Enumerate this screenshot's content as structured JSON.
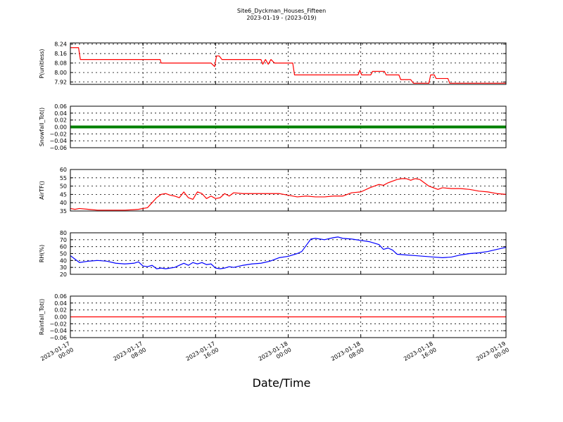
{
  "title_line1": "Site6_Dyckman_Houses_Fifteen",
  "title_line2": "2023-01-19 - (2023-019)",
  "xlabel": "Date/Time",
  "x_ticks": [
    [
      "2023-01-17",
      "00:00"
    ],
    [
      "2023-01-17",
      "08:00"
    ],
    [
      "2023-01-17",
      "16:00"
    ],
    [
      "2023-01-18",
      "00:00"
    ],
    [
      "2023-01-18",
      "08:00"
    ],
    [
      "2023-01-18",
      "16:00"
    ],
    [
      "2023-01-19",
      "00:00"
    ]
  ],
  "colors": {
    "red": "#ff0000",
    "green": "#008000",
    "blue": "#0000ff",
    "axis": "#000000"
  },
  "chart_data": [
    {
      "type": "line",
      "ylabel": "P(unitless)",
      "ylim": [
        7.9,
        8.25
      ],
      "yticks": [
        7.92,
        8.0,
        8.08,
        8.16,
        8.24
      ],
      "ytick_labels": [
        "7.92",
        "8.00",
        "8.08",
        "8.16",
        "8.24"
      ],
      "x_range_hours": [
        0,
        48
      ],
      "series": [
        {
          "color": "#ff0000",
          "x": [
            0,
            0.9,
            1.1,
            4,
            7,
            9.9,
            10,
            12,
            14,
            15.5,
            15.9,
            16.1,
            16.4,
            16.7,
            17,
            18,
            19,
            20,
            21,
            21.2,
            21.5,
            21.8,
            22.1,
            22.5,
            23,
            24,
            24.5,
            24.7,
            25,
            28,
            30,
            31.7,
            31.9,
            32.1,
            32.4,
            33.1,
            33.3,
            34.6,
            34.8,
            36.2,
            36.4,
            37.5,
            37.8,
            39.5,
            39.7,
            40.1,
            40.3,
            41.6,
            41.8,
            48
          ],
          "y": [
            8.21,
            8.21,
            8.11,
            8.11,
            8.11,
            8.11,
            8.08,
            8.08,
            8.08,
            8.08,
            8.05,
            8.14,
            8.14,
            8.11,
            8.11,
            8.11,
            8.11,
            8.11,
            8.11,
            8.07,
            8.11,
            8.07,
            8.11,
            8.08,
            8.08,
            8.08,
            8.08,
            7.98,
            7.98,
            7.98,
            7.98,
            7.98,
            8.02,
            7.98,
            7.98,
            7.98,
            8.01,
            8.01,
            7.98,
            7.98,
            7.94,
            7.94,
            7.91,
            7.91,
            7.98,
            7.98,
            7.95,
            7.95,
            7.91,
            7.91
          ]
        }
      ]
    },
    {
      "type": "scatter",
      "ylabel": "Snowfall_Tot()",
      "ylim": [
        -0.06,
        0.06
      ],
      "yticks": [
        -0.06,
        -0.04,
        -0.02,
        0.0,
        0.02,
        0.04,
        0.06
      ],
      "ytick_labels": [
        "−0.06",
        "−0.04",
        "−0.02",
        "0.00",
        "0.02",
        "0.04",
        "0.06"
      ],
      "x_range_hours": [
        0,
        48
      ],
      "series": [
        {
          "color": "#008000",
          "constant": 0.0,
          "x_start": 0,
          "x_end": 48
        }
      ]
    },
    {
      "type": "line",
      "ylabel": "AirTF()",
      "ylim": [
        35,
        60
      ],
      "yticks": [
        35,
        40,
        45,
        50,
        55,
        60
      ],
      "ytick_labels": [
        "35",
        "40",
        "45",
        "50",
        "55",
        "60"
      ],
      "x_range_hours": [
        0,
        48
      ],
      "series": [
        {
          "color": "#ff0000",
          "x": [
            0,
            0.5,
            1,
            2,
            3,
            4,
            5,
            6,
            7,
            7.5,
            8,
            8.5,
            9,
            9.5,
            10,
            10.5,
            11,
            11.5,
            12,
            12.5,
            13,
            13.5,
            14,
            14.5,
            15,
            15.5,
            16,
            16.5,
            17,
            17.5,
            18,
            19,
            20,
            21,
            22,
            23,
            24,
            25,
            26,
            27,
            28,
            29,
            30,
            31,
            32,
            33,
            34,
            34.5,
            35,
            35.5,
            36,
            36.5,
            37,
            37.5,
            38,
            38.5,
            39,
            39.5,
            40,
            40.5,
            41,
            42,
            43,
            44,
            45,
            46,
            47,
            48
          ],
          "y": [
            36.5,
            36,
            36.5,
            36,
            35.5,
            35.5,
            35.5,
            35.5,
            35.8,
            36,
            36.5,
            37,
            40,
            43,
            45,
            45.5,
            44.5,
            44,
            43,
            46.5,
            43,
            42,
            46.5,
            45.5,
            42.5,
            44,
            42.5,
            43,
            45.5,
            44,
            46,
            45.5,
            45.5,
            45.5,
            45.5,
            45.5,
            44.5,
            43.5,
            44,
            43.5,
            43.5,
            44,
            44,
            46,
            46.5,
            49,
            51,
            50.5,
            52,
            53,
            54,
            54.5,
            54.5,
            53.5,
            54.5,
            54,
            52,
            50,
            49,
            48,
            49,
            48.5,
            48.5,
            48,
            47,
            46.5,
            45.5,
            45
          ]
        }
      ]
    },
    {
      "type": "line",
      "ylabel": "RH(%)",
      "ylim": [
        20,
        80
      ],
      "yticks": [
        20,
        30,
        40,
        50,
        60,
        70,
        80
      ],
      "ytick_labels": [
        "20",
        "30",
        "40",
        "50",
        "60",
        "70",
        "80"
      ],
      "x_range_hours": [
        0,
        48
      ],
      "series": [
        {
          "color": "#0000ff",
          "x": [
            0,
            0.5,
            1,
            2,
            3,
            4,
            5,
            6,
            7,
            7.5,
            8,
            8.5,
            9,
            9.5,
            10,
            10.5,
            11,
            11.5,
            12,
            12.5,
            13,
            13.5,
            14,
            14.5,
            15,
            15.5,
            16,
            16.5,
            17,
            17.5,
            18,
            19,
            20,
            21,
            22,
            23,
            24,
            25,
            25.5,
            26,
            26.5,
            27,
            28,
            29,
            29.5,
            30,
            31,
            32,
            33,
            34,
            34.5,
            35,
            35.5,
            36,
            37,
            38,
            39,
            40,
            41,
            42,
            43,
            44,
            45,
            46,
            47,
            48
          ],
          "y": [
            47,
            42,
            37,
            39,
            40,
            39,
            36,
            35,
            36,
            38,
            32,
            31,
            33,
            28,
            29,
            28,
            29,
            30,
            33,
            36,
            33,
            37,
            35,
            37,
            34,
            35,
            29,
            28,
            29,
            31,
            30,
            33,
            35,
            36,
            39,
            44,
            46,
            50,
            53,
            62,
            71,
            72,
            70,
            73,
            74,
            72,
            71,
            69,
            67,
            63,
            56,
            58,
            55,
            49,
            48,
            47,
            46,
            45,
            44,
            45,
            48,
            50,
            51,
            53,
            56,
            59
          ]
        }
      ]
    },
    {
      "type": "line",
      "ylabel": "Rainfall_Tot()",
      "ylim": [
        -0.06,
        0.06
      ],
      "yticks": [
        -0.06,
        -0.04,
        -0.02,
        0.0,
        0.02,
        0.04,
        0.06
      ],
      "ytick_labels": [
        "−0.06",
        "−0.04",
        "−0.02",
        "0.00",
        "0.02",
        "0.04",
        "0.06"
      ],
      "x_range_hours": [
        0,
        48
      ],
      "series": [
        {
          "color": "#ff0000",
          "x": [
            0,
            48
          ],
          "y": [
            0.0,
            0.0
          ]
        }
      ]
    }
  ]
}
